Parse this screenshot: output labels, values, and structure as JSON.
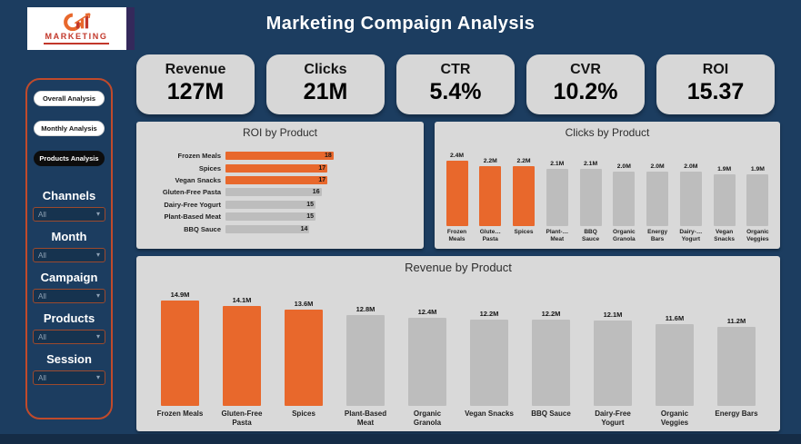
{
  "title": "Marketing Compaign Analysis",
  "logo": {
    "brand": "MARKETING"
  },
  "sidebar": {
    "nav": [
      {
        "label": "Overall Analysis",
        "active": false
      },
      {
        "label": "Monthly Analysis",
        "active": false
      },
      {
        "label": "Products Analysis",
        "active": true
      }
    ],
    "filters": [
      {
        "label": "Channels",
        "value": "All"
      },
      {
        "label": "Month",
        "value": "All"
      },
      {
        "label": "Campaign",
        "value": "All"
      },
      {
        "label": "Products",
        "value": "All"
      },
      {
        "label": "Session",
        "value": "All"
      }
    ]
  },
  "kpis": [
    {
      "label": "Revenue",
      "value": "127M"
    },
    {
      "label": "Clicks",
      "value": "21M"
    },
    {
      "label": "CTR",
      "value": "5.4%"
    },
    {
      "label": "CVR",
      "value": "10.2%"
    },
    {
      "label": "ROI",
      "value": "15.37"
    }
  ],
  "chart_data": [
    {
      "id": "roi_by_product",
      "type": "bar",
      "orientation": "horizontal",
      "title": "ROI by Product",
      "categories": [
        "Frozen Meals",
        "Spices",
        "Vegan Snacks",
        "Gluten-Free Pasta",
        "Dairy-Free Yogurt",
        "Plant-Based Meat",
        "BBQ Sauce"
      ],
      "values": [
        18,
        17,
        17,
        16,
        15,
        15,
        14
      ],
      "value_labels": [
        "18",
        "17",
        "17",
        "16",
        "15",
        "15",
        "14"
      ],
      "highlighted_indices": [
        0,
        1,
        2
      ],
      "xlim": [
        0,
        18
      ],
      "grid": false,
      "legend": false
    },
    {
      "id": "clicks_by_product",
      "type": "bar",
      "orientation": "vertical",
      "title": "Clicks by Product",
      "categories": [
        "Frozen\nMeals",
        "Glute…\nPasta",
        "Spices",
        "Plant-…\nMeat",
        "BBQ\nSauce",
        "Organic\nGranola",
        "Energy\nBars",
        "Dairy-…\nYogurt",
        "Vegan\nSnacks",
        "Organic\nVeggies"
      ],
      "values": [
        2.4,
        2.2,
        2.2,
        2.1,
        2.1,
        2.0,
        2.0,
        2.0,
        1.9,
        1.9
      ],
      "value_labels": [
        "2.4M",
        "2.2M",
        "2.2M",
        "2.1M",
        "2.1M",
        "2.0M",
        "2.0M",
        "2.0M",
        "1.9M",
        "1.9M"
      ],
      "highlighted_indices": [
        0,
        1,
        2
      ],
      "unit": "M",
      "grid": false,
      "legend": false
    },
    {
      "id": "revenue_by_product",
      "type": "bar",
      "orientation": "vertical",
      "title": "Revenue by Product",
      "categories": [
        "Frozen Meals",
        "Gluten-Free\nPasta",
        "Spices",
        "Plant-Based\nMeat",
        "Organic\nGranola",
        "Vegan Snacks",
        "BBQ Sauce",
        "Dairy-Free\nYogurt",
        "Organic\nVeggies",
        "Energy Bars"
      ],
      "values": [
        14.9,
        14.1,
        13.6,
        12.8,
        12.4,
        12.2,
        12.2,
        12.1,
        11.6,
        11.2
      ],
      "value_labels": [
        "14.9M",
        "14.1M",
        "13.6M",
        "12.8M",
        "12.4M",
        "12.2M",
        "12.2M",
        "12.1M",
        "11.6M",
        "11.2M"
      ],
      "highlighted_indices": [
        0,
        1,
        2
      ],
      "unit": "M",
      "grid": false,
      "legend": false
    }
  ],
  "colors": {
    "background": "#1C3D60",
    "panel": "#D9D9D9",
    "card": "#D7D7D7",
    "accent": "#E8682C",
    "bar_gray": "#BDBDBD",
    "active_nav": "#0D0D0D",
    "sidebar_outline": "#C04A2B",
    "logo_red": "#C2372A",
    "logo_purple": "#34295B"
  }
}
